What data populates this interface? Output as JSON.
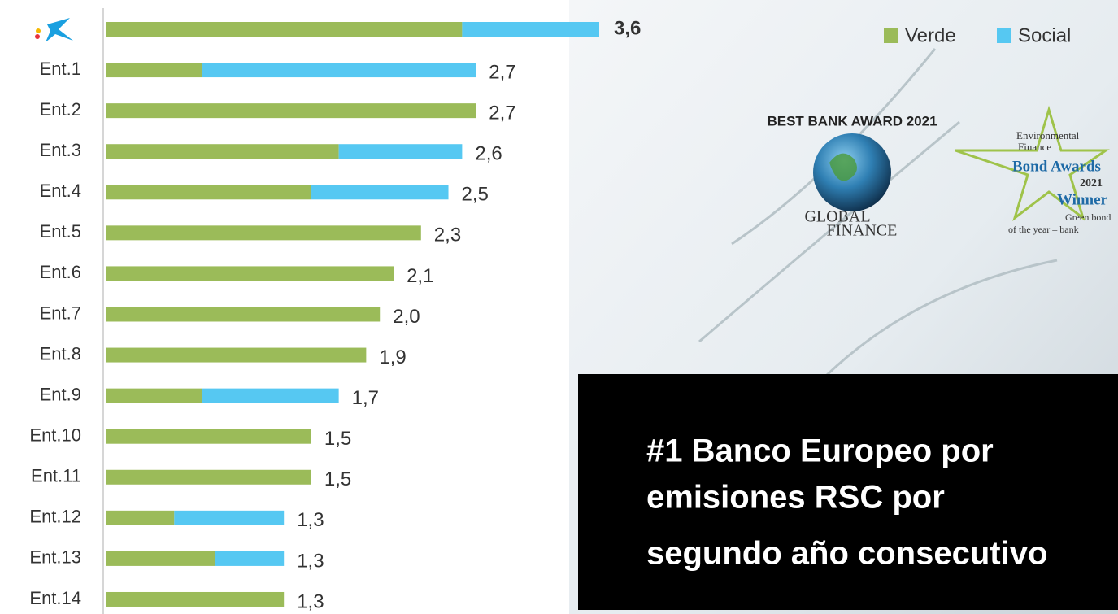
{
  "chart_data": {
    "type": "stacked-barh",
    "categories": [
      null,
      "Ent.1",
      "Ent.2",
      "Ent.3",
      "Ent.4",
      "Ent.5",
      "Ent.6",
      "Ent.7",
      "Ent.8",
      "Ent.9",
      "Ent.10",
      "Ent.11",
      "Ent.12",
      "Ent.13",
      "Ent.14"
    ],
    "series": [
      {
        "name": "Verde",
        "color": "#9bbb59",
        "values": [
          2.6,
          0.7,
          2.7,
          1.7,
          1.5,
          2.3,
          2.1,
          2.0,
          1.9,
          0.7,
          1.5,
          1.5,
          0.5,
          0.8,
          1.3
        ]
      },
      {
        "name": "Social",
        "color": "#56c8f2",
        "values": [
          1.0,
          2.0,
          0,
          0.9,
          1.0,
          0,
          0,
          0,
          0,
          1.0,
          0,
          0,
          0.8,
          0.5,
          0
        ]
      }
    ],
    "totals": [
      3.6,
      2.7,
      2.7,
      2.6,
      2.5,
      2.3,
      2.1,
      2.0,
      1.9,
      1.7,
      1.5,
      1.5,
      1.3,
      1.3,
      1.3
    ],
    "value_labels": [
      "3,6",
      "2,7",
      "2,7",
      "2,6",
      "2,5",
      "2,3",
      "2,1",
      "2,0",
      "1,9",
      "1,7",
      "1,5",
      "1,5",
      "1,3",
      "1,3",
      "1,3"
    ],
    "legend": "top-right"
  },
  "annotations": {
    "headline": [
      "#1 Banco Europeo por",
      "emisiones RSC por",
      "segundo año consecutivo"
    ],
    "award1": [
      "BEST BANK AWARD 2021",
      "GLOBAL",
      "FINANCE"
    ],
    "award2": [
      "Environmental",
      "Finance",
      "Bond Awards",
      "2021",
      "Winner",
      "Green bond",
      "of the year – bank"
    ]
  }
}
